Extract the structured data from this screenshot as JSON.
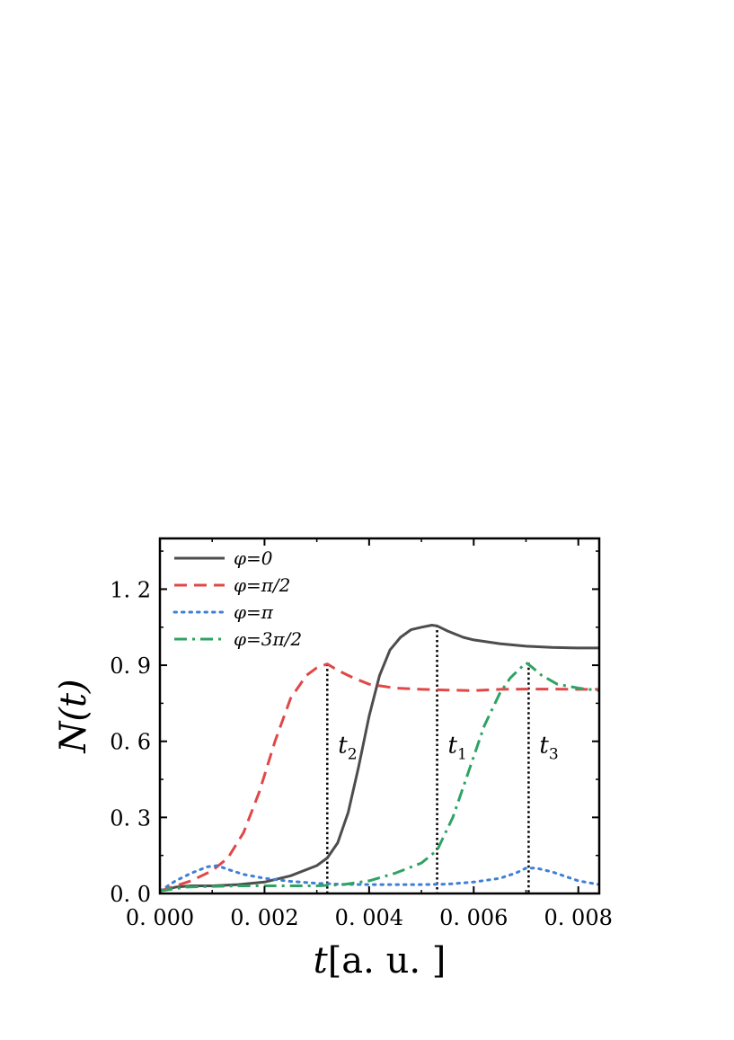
{
  "chart_data": {
    "type": "line",
    "xlabel": {
      "var": "t",
      "unit": "[a. u. ]"
    },
    "ylabel": {
      "var": "N",
      "arg": "(t)"
    },
    "xlim": [
      0,
      0.0084
    ],
    "ylim": [
      0,
      1.4
    ],
    "xticks": [
      0,
      0.002,
      0.004,
      0.006,
      0.008
    ],
    "xtick_labels": [
      "0. 000",
      "0. 002",
      "0. 004",
      "0. 006",
      "0. 008"
    ],
    "yticks": [
      0,
      0.3,
      0.6,
      0.9,
      1.2
    ],
    "ytick_labels": [
      "0. 0",
      "0. 3",
      "0. 6",
      "0. 9",
      "1. 2"
    ],
    "grid": false,
    "legend_position": "top-left",
    "series": [
      {
        "name": "φ=0",
        "legend": {
          "phi": "φ",
          "rest": "=0"
        },
        "color": "#4d4d4d",
        "dash": "solid",
        "x": [
          0,
          0.0003,
          0.0006,
          0.001,
          0.0015,
          0.002,
          0.0025,
          0.003,
          0.0032,
          0.0034,
          0.0036,
          0.0038,
          0.004,
          0.0042,
          0.0044,
          0.0046,
          0.0048,
          0.005,
          0.0052,
          0.0053,
          0.0055,
          0.0058,
          0.006,
          0.0065,
          0.007,
          0.0075,
          0.008,
          0.0084
        ],
        "y": [
          0.01,
          0.025,
          0.03,
          0.03,
          0.035,
          0.045,
          0.07,
          0.11,
          0.14,
          0.2,
          0.32,
          0.5,
          0.7,
          0.86,
          0.96,
          1.01,
          1.04,
          1.05,
          1.058,
          1.055,
          1.035,
          1.01,
          1.0,
          0.985,
          0.975,
          0.97,
          0.968,
          0.968
        ]
      },
      {
        "name": "φ=π/2",
        "legend": {
          "phi": "φ",
          "rest": "=π/2"
        },
        "color": "#e04848",
        "dash": "dashed",
        "x": [
          0,
          0.0003,
          0.0006,
          0.001,
          0.0013,
          0.0016,
          0.0019,
          0.0022,
          0.0025,
          0.0028,
          0.003,
          0.0032,
          0.0034,
          0.0037,
          0.004,
          0.0045,
          0.005,
          0.0055,
          0.006,
          0.0065,
          0.007,
          0.0075,
          0.008,
          0.0084
        ],
        "y": [
          0.01,
          0.03,
          0.05,
          0.09,
          0.14,
          0.24,
          0.4,
          0.6,
          0.77,
          0.86,
          0.89,
          0.905,
          0.88,
          0.85,
          0.825,
          0.81,
          0.805,
          0.802,
          0.8,
          0.805,
          0.806,
          0.806,
          0.805,
          0.805
        ]
      },
      {
        "name": "φ=π",
        "legend": {
          "phi": "φ",
          "rest": "=π"
        },
        "color": "#3f7fd6",
        "dash": "dotted",
        "x": [
          0,
          0.0003,
          0.0006,
          0.0009,
          0.0011,
          0.0013,
          0.0016,
          0.002,
          0.0025,
          0.003,
          0.0035,
          0.004,
          0.0045,
          0.005,
          0.0055,
          0.006,
          0.0065,
          0.0068,
          0.007,
          0.0072,
          0.0075,
          0.008,
          0.0084
        ],
        "y": [
          0.01,
          0.05,
          0.08,
          0.105,
          0.11,
          0.095,
          0.075,
          0.06,
          0.048,
          0.04,
          0.036,
          0.035,
          0.035,
          0.035,
          0.037,
          0.045,
          0.06,
          0.08,
          0.1,
          0.1,
          0.085,
          0.05,
          0.035
        ]
      },
      {
        "name": "φ=3π/2",
        "legend": {
          "phi": "φ",
          "rest": "=3π/2"
        },
        "color": "#2ea363",
        "dash": "dashdot",
        "x": [
          0,
          0.0005,
          0.001,
          0.0015,
          0.002,
          0.0025,
          0.003,
          0.0035,
          0.004,
          0.0045,
          0.005,
          0.0053,
          0.0056,
          0.0059,
          0.0062,
          0.0065,
          0.0067,
          0.0069,
          0.007,
          0.0071,
          0.0073,
          0.0076,
          0.008,
          0.0084
        ],
        "y": [
          0.01,
          0.025,
          0.028,
          0.03,
          0.03,
          0.03,
          0.03,
          0.035,
          0.05,
          0.08,
          0.12,
          0.17,
          0.3,
          0.48,
          0.66,
          0.79,
          0.85,
          0.89,
          0.91,
          0.895,
          0.86,
          0.825,
          0.81,
          0.8
        ]
      }
    ],
    "vlines": [
      {
        "x": 0.0032,
        "y": 0.905,
        "label": {
          "var": "t",
          "sub": "2"
        }
      },
      {
        "x": 0.0053,
        "y": 1.058,
        "label": {
          "var": "t",
          "sub": "1"
        }
      },
      {
        "x": 0.00705,
        "y": 0.91,
        "label": {
          "var": "t",
          "sub": "3"
        }
      }
    ]
  }
}
